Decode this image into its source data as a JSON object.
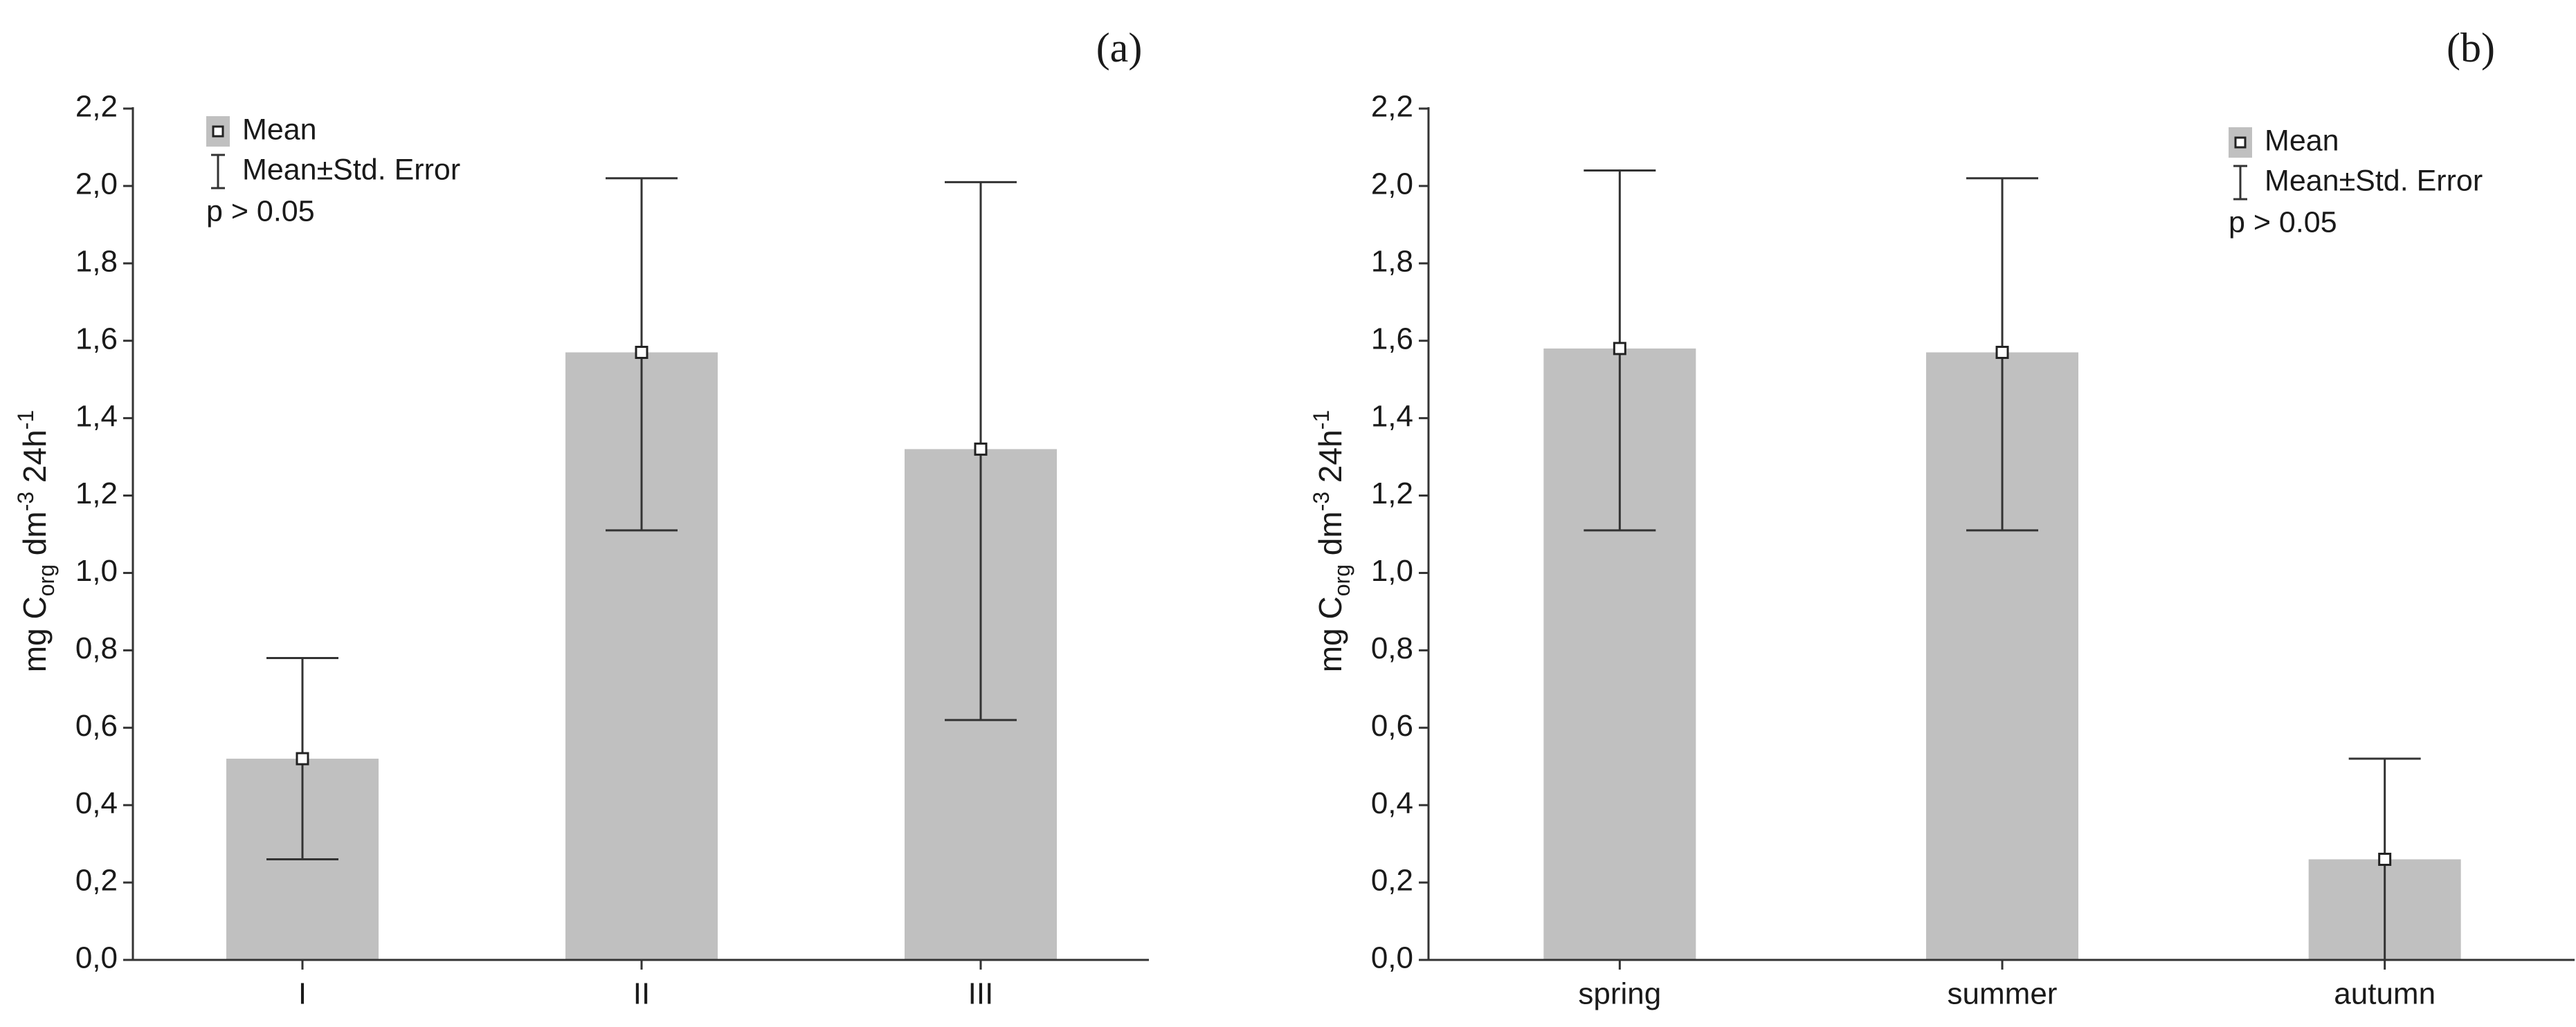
{
  "figure": {
    "panels": [
      "(a)",
      "(b)"
    ]
  },
  "chart_data": [
    {
      "type": "bar",
      "panel_label": "(a)",
      "categories": [
        "I",
        "II",
        "III"
      ],
      "values": [
        0.52,
        1.57,
        1.32
      ],
      "error_low": [
        0.26,
        1.11,
        0.62
      ],
      "error_high": [
        0.78,
        2.02,
        2.01
      ],
      "ylabel": {
        "pre": "mg C",
        "sub": "org",
        "mid": " dm",
        "sup1": "-3",
        "post": " 24h",
        "sup2": "-1"
      },
      "ylim": [
        0,
        2.2
      ],
      "yticks": [
        "0,0",
        "0,2",
        "0,4",
        "0,6",
        "0,8",
        "1,0",
        "1,2",
        "1,4",
        "1,6",
        "1,8",
        "2,0",
        "2,2"
      ],
      "legend": {
        "mean": "Mean",
        "error": "Mean±Std. Error",
        "p": "p > 0.05",
        "position": "top-left"
      },
      "bar_color": "#c0c0c0",
      "grid": false
    },
    {
      "type": "bar",
      "panel_label": "(b)",
      "categories": [
        "spring",
        "summer",
        "autumn"
      ],
      "values": [
        1.58,
        1.57,
        0.26
      ],
      "error_low": [
        1.11,
        1.11,
        0.0
      ],
      "error_high": [
        2.04,
        2.02,
        0.52
      ],
      "ylabel": {
        "pre": "mg C",
        "sub": "org",
        "mid": " dm",
        "sup1": "-3",
        "post": " 24h",
        "sup2": "-1"
      },
      "ylim": [
        0,
        2.2
      ],
      "yticks": [
        "0,0",
        "0,2",
        "0,4",
        "0,6",
        "0,8",
        "1,0",
        "1,2",
        "1,4",
        "1,6",
        "1,8",
        "2,0",
        "2,2"
      ],
      "legend": {
        "mean": "Mean",
        "error": "Mean±Std. Error",
        "p": "p > 0.05",
        "position": "top-right"
      },
      "bar_color": "#c0c0c0",
      "grid": false
    }
  ]
}
